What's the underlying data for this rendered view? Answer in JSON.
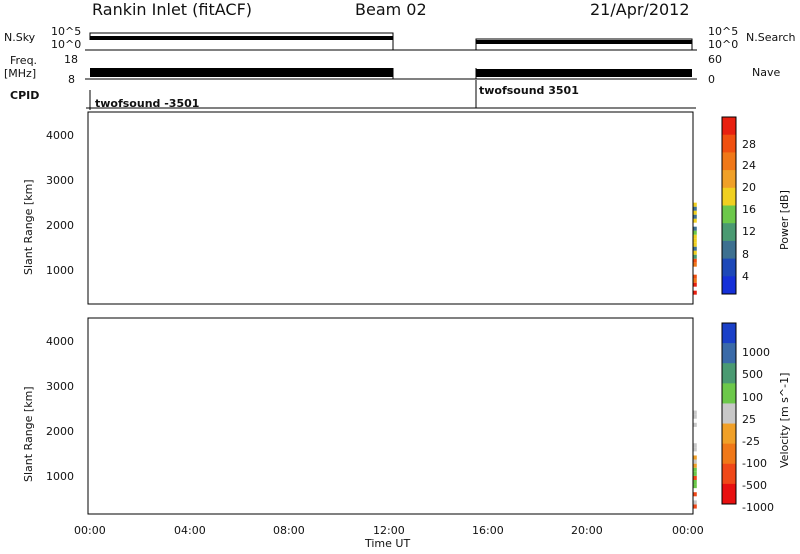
{
  "header": {
    "title": "Rankin Inlet (fitACF)",
    "beam": "Beam 02",
    "date": "21/Apr/2012"
  },
  "info_panel": {
    "nsky_label": "N.Sky",
    "nsearch_label": "N.Search",
    "noise_ticks": [
      "10^5",
      "10^0"
    ],
    "freq_label_1": "Freq.",
    "freq_label_2": "[MHz]",
    "freq_ticks": [
      "18",
      "8"
    ],
    "nave_label": "Nave",
    "nave_ticks": [
      "60",
      "0"
    ],
    "cpid_label": "CPID",
    "cpid_segments": [
      {
        "text": "twofsound -3501"
      },
      {
        "text": "twofsound 3501"
      }
    ]
  },
  "x_axis": {
    "label": "Time UT",
    "ticks": [
      "00:00",
      "04:00",
      "08:00",
      "12:00",
      "16:00",
      "20:00",
      "00:00"
    ]
  },
  "colors": {
    "power": [
      "#1530d8",
      "#1d48b8",
      "#3d7090",
      "#4a9a72",
      "#6cc84a",
      "#f0d020",
      "#f0a028",
      "#f07818",
      "#f05010",
      "#e82010"
    ],
    "velocity": [
      "#e81010",
      "#f04818",
      "#f07818",
      "#f0a028",
      "#c8c8c8",
      "#6cc84a",
      "#4a9a72",
      "#3a6aa8",
      "#1a40c8"
    ]
  },
  "chart_data": [
    {
      "type": "heatmap",
      "ylabel": "Slant Range [km]",
      "xlabel": "Time UT",
      "xlim": [
        "00:00",
        "24:00"
      ],
      "ylim": [
        180,
        4500
      ],
      "ytick_labels": [
        "1000",
        "2000",
        "3000",
        "4000"
      ],
      "data_gap_utc": [
        "12:00",
        "15:30"
      ],
      "colorbar": {
        "label": "Power [dB]",
        "ticks": [
          "4",
          "8",
          "12",
          "16",
          "20",
          "24",
          "28"
        ],
        "range": [
          0,
          30
        ]
      }
    },
    {
      "type": "heatmap",
      "ylabel": "Slant Range [km]",
      "xlabel": "Time UT",
      "xlim": [
        "00:00",
        "24:00"
      ],
      "ylim": [
        180,
        4500
      ],
      "ytick_labels": [
        "1000",
        "2000",
        "3000",
        "4000"
      ],
      "data_gap_utc": [
        "12:00",
        "15:30"
      ],
      "colorbar": {
        "label": "Velocity [m s^-1]",
        "ticks": [
          "1000",
          "500",
          "100",
          "25",
          "-25",
          "-100",
          "-500",
          "-1000"
        ]
      }
    }
  ]
}
